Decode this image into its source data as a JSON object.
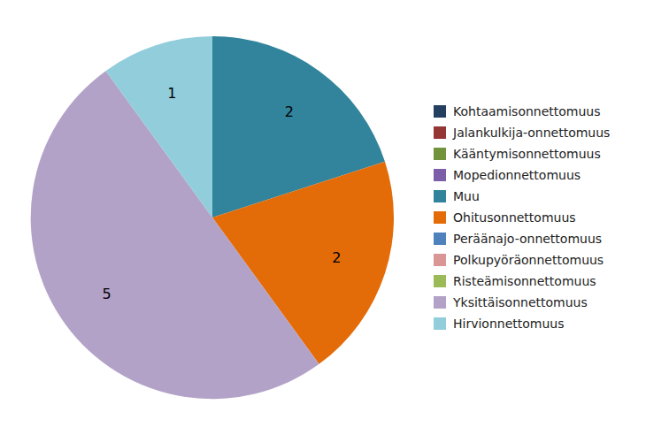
{
  "chart_data": {
    "type": "pie",
    "categories": [
      "Kohtaamisonnettomuus",
      "Jalankulkija-onnettomuus",
      "Kääntymisonnettomuus",
      "Mopedionnettomuus",
      "Muu",
      "Ohitusonnettomuus",
      "Peräänajo-onnettomuus",
      "Polkupyöräonnettomuus",
      "Ristеämisonnettomuus",
      "Yksittäisonnettomuus",
      "Hirvionnettomuus"
    ],
    "values": [
      0,
      0,
      0,
      0,
      2,
      2,
      0,
      0,
      0,
      5,
      1
    ],
    "value_labels": [
      null,
      null,
      null,
      null,
      "2",
      "2",
      null,
      null,
      null,
      "5",
      "1"
    ],
    "colors": [
      "#243f60",
      "#943634",
      "#71933c",
      "#7b5ea7",
      "#31849b",
      "#e36c09",
      "#4f81bd",
      "#d99694",
      "#9bbb59",
      "#b3a2c7",
      "#92cddc"
    ],
    "data_labels": true,
    "legend": "right"
  }
}
